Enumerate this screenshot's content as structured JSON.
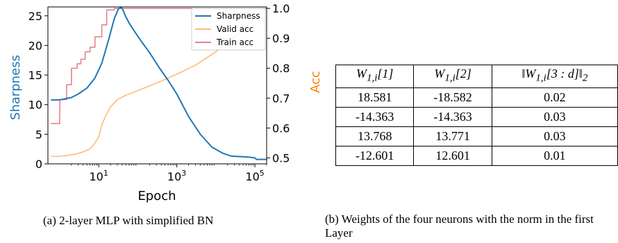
{
  "chart_data": [
    {
      "type": "line",
      "x_scale": "log",
      "xlabel": "Epoch",
      "ylabel_left": "Sharpness",
      "ylabel_right": "Acc",
      "xlim": [
        0.5,
        200000
      ],
      "ylim_left": [
        0,
        26.5
      ],
      "ylim_right": [
        0.48,
        1.005
      ],
      "x_ticks": [
        10,
        1000,
        100000
      ],
      "x_tick_labels": [
        "10",
        "10",
        "10"
      ],
      "x_tick_exponents": [
        "1",
        "3",
        "5"
      ],
      "y_ticks_left": [
        0,
        5,
        10,
        15,
        20,
        25
      ],
      "y_tick_labels_left": [
        "0",
        "5",
        "10",
        "15",
        "20",
        "25"
      ],
      "y_ticks_right": [
        0.5,
        0.6,
        0.7,
        0.8,
        0.9,
        1.0
      ],
      "y_tick_labels_right": [
        "0.5",
        "0.6",
        "0.7",
        "0.8",
        "0.9",
        "1.0"
      ],
      "grid": false,
      "legend_placement": "top-right",
      "series": [
        {
          "name": "Sharpness",
          "axis": "left",
          "color": "#1f77b4",
          "x": [
            0.6,
            1,
            2,
            3,
            5,
            8,
            12,
            18,
            25,
            32,
            38,
            42,
            48,
            60,
            80,
            120,
            200,
            350,
            600,
            1000,
            2000,
            4000,
            8000,
            15000,
            25000,
            50000,
            80000,
            100000,
            110000,
            200000
          ],
          "y": [
            10.8,
            10.8,
            11.2,
            11.8,
            12.8,
            14.5,
            17.0,
            21.0,
            24.5,
            26.2,
            26.4,
            26.0,
            25.0,
            23.8,
            22.5,
            20.8,
            18.8,
            16.3,
            14.1,
            11.8,
            8.0,
            5.0,
            2.8,
            1.8,
            1.3,
            1.2,
            1.1,
            1.0,
            0.75,
            0.75
          ]
        },
        {
          "name": "Valid acc",
          "axis": "right",
          "color": "#ffbb78",
          "x": [
            0.6,
            1,
            2,
            3,
            4,
            6,
            8,
            10,
            12,
            15,
            20,
            30,
            50,
            100,
            300,
            1000,
            3000,
            10000,
            30000,
            100000,
            150000
          ],
          "y": [
            0.505,
            0.505,
            0.51,
            0.515,
            0.52,
            0.53,
            0.55,
            0.57,
            0.61,
            0.64,
            0.67,
            0.695,
            0.71,
            0.725,
            0.75,
            0.78,
            0.81,
            0.855,
            0.905,
            0.965,
            0.98
          ]
        },
        {
          "name": "Train acc",
          "axis": "right",
          "color": "#e8808d",
          "x": [
            0.6,
            1,
            1.01,
            1.5,
            1.51,
            2,
            2.01,
            2.8,
            2.81,
            3.5,
            3.51,
            4.5,
            4.51,
            6,
            6.01,
            8,
            8.01,
            12,
            12.01,
            16,
            16.01,
            25,
            25.01,
            200000
          ],
          "y": [
            0.615,
            0.615,
            0.695,
            0.695,
            0.745,
            0.745,
            0.8,
            0.8,
            0.815,
            0.815,
            0.83,
            0.83,
            0.855,
            0.855,
            0.87,
            0.87,
            0.905,
            0.905,
            0.945,
            0.945,
            0.995,
            0.995,
            1.0,
            1.0
          ]
        }
      ]
    },
    {
      "type": "table",
      "columns_html": [
        "W<sub>1,i</sub>[1]",
        "W<sub>1,i</sub>[2]",
        "‖W<sub>1,i</sub>[3 : d]‖<sub>2</sub>"
      ],
      "rows": [
        [
          "18.581",
          "-18.582",
          "0.02"
        ],
        [
          "-14.363",
          "-14.363",
          "0.03"
        ],
        [
          "13.768",
          "13.771",
          "0.03"
        ],
        [
          "-12.601",
          "12.601",
          "0.01"
        ]
      ]
    }
  ],
  "captions": {
    "a": "(a) 2-layer MLP with simplified BN",
    "b": "(b) Weights of the four neurons with the norm in the first Layer"
  },
  "colors": {
    "sharpness_axis": "#1f77b4",
    "acc_axis": "#ff7f0e"
  }
}
